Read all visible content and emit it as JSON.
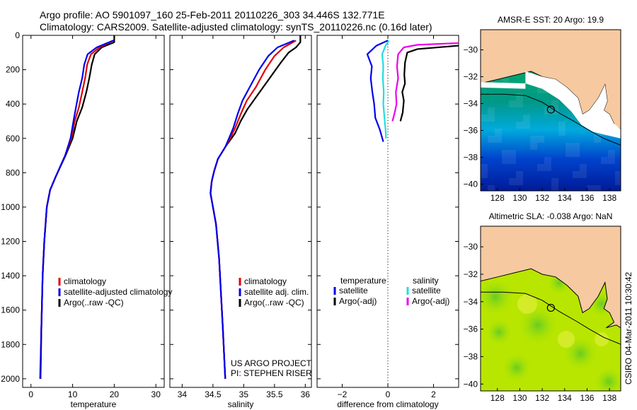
{
  "header": {
    "line1": "Argo profile: AO 5901097_160 25-Feb-2011 20110226_303 34.446S 132.771E",
    "line2": "Climatology: CARS2009. Satellite-adjusted climatology: synTS_20110226.nc (0.16d later)"
  },
  "side_label": "CSIRO 04-Mar-2011 10:30:42",
  "colors": {
    "climatology": "#e00000",
    "satellite": "#0000ee",
    "argo": "#000000",
    "satellite_salinity": "#22dddd",
    "argo_salinity_adj": "#ee00ee",
    "land": "#f6c9a0",
    "sst_field": "#00aa77",
    "sla_field": "#b8e600"
  },
  "chart_data": [
    {
      "type": "line",
      "name": "temperature-profile",
      "xlabel": "temperature",
      "xlim": [
        -2,
        32
      ],
      "xticks": [
        0,
        10,
        20,
        30
      ],
      "ylim": [
        2050,
        0
      ],
      "yticks": [
        0,
        200,
        400,
        600,
        800,
        1000,
        1200,
        1400,
        1600,
        1800,
        2000
      ],
      "legend": [
        "climatology",
        "satellite-adjusted climatology",
        "Argo(..raw -QC)"
      ],
      "series": [
        {
          "name": "Argo(..raw -QC)",
          "color": "#000000",
          "points": [
            [
              20,
              0
            ],
            [
              20,
              40
            ],
            [
              17,
              70
            ],
            [
              15.3,
              110
            ],
            [
              14.6,
              170
            ],
            [
              14,
              250
            ],
            [
              13.3,
              330
            ],
            [
              12.3,
              420
            ],
            [
              11,
              500
            ],
            [
              10,
              600
            ],
            [
              8.3,
              700
            ],
            [
              6,
              820
            ],
            [
              4.6,
              900
            ],
            [
              3.8,
              1000
            ],
            [
              3.2,
              1200
            ],
            [
              2.8,
              1400
            ],
            [
              2.5,
              1700
            ],
            [
              2.2,
              2000
            ]
          ]
        },
        {
          "name": "climatology",
          "color": "#e00000",
          "points": [
            [
              19.8,
              30
            ],
            [
              16.5,
              70
            ],
            [
              14.4,
              110
            ],
            [
              13.5,
              170
            ],
            [
              13,
              250
            ],
            [
              12.3,
              330
            ],
            [
              11.5,
              420
            ],
            [
              10.5,
              500
            ],
            [
              9.7,
              600
            ],
            [
              8.2,
              700
            ],
            [
              6,
              820
            ],
            [
              4.6,
              900
            ],
            [
              3.8,
              1000
            ],
            [
              3.2,
              1200
            ],
            [
              2.8,
              1400
            ],
            [
              2.5,
              1700
            ],
            [
              2.3,
              2000
            ]
          ]
        },
        {
          "name": "satellite-adjusted climatology",
          "color": "#0000ee",
          "points": [
            [
              19.8,
              30
            ],
            [
              15.8,
              70
            ],
            [
              13.6,
              110
            ],
            [
              12.8,
              170
            ],
            [
              12.3,
              250
            ],
            [
              11.5,
              330
            ],
            [
              10.8,
              420
            ],
            [
              10.2,
              500
            ],
            [
              9.5,
              600
            ],
            [
              8.2,
              700
            ],
            [
              6,
              820
            ],
            [
              4.6,
              900
            ],
            [
              3.8,
              1000
            ],
            [
              3.2,
              1200
            ],
            [
              2.8,
              1400
            ],
            [
              2.5,
              1700
            ],
            [
              2.3,
              2000
            ]
          ]
        }
      ]
    },
    {
      "type": "line",
      "name": "salinity-profile",
      "xlabel": "salinity",
      "xlim": [
        33.8,
        36.1
      ],
      "xticks": [
        34,
        34.5,
        35,
        35.5,
        36
      ],
      "xtick_labels": [
        "34",
        "34.5",
        "35",
        "35.5",
        "36"
      ],
      "ylim": [
        2050,
        0
      ],
      "legend": [
        "climatology",
        "satellite adj. clim.",
        "Argo(..raw -QC)"
      ],
      "annotation": [
        "US ARGO PROJECT",
        "PI: STEPHEN RISER"
      ],
      "series": [
        {
          "name": "Argo(..raw -QC)",
          "color": "#000000",
          "points": [
            [
              35.92,
              0
            ],
            [
              35.92,
              40
            ],
            [
              35.85,
              70
            ],
            [
              35.73,
              100
            ],
            [
              35.6,
              160
            ],
            [
              35.42,
              250
            ],
            [
              35.22,
              350
            ],
            [
              35.06,
              430
            ],
            [
              34.95,
              500
            ],
            [
              34.86,
              570
            ],
            [
              34.72,
              640
            ],
            [
              34.58,
              720
            ],
            [
              34.52,
              790
            ],
            [
              34.48,
              850
            ],
            [
              34.46,
              920
            ],
            [
              34.5,
              1000
            ],
            [
              34.55,
              1100
            ],
            [
              34.6,
              1300
            ],
            [
              34.63,
              1500
            ],
            [
              34.66,
              1700
            ],
            [
              34.68,
              1850
            ],
            [
              34.7,
              2000
            ]
          ]
        },
        {
          "name": "climatology",
          "color": "#e00000",
          "points": [
            [
              35.85,
              30
            ],
            [
              35.65,
              70
            ],
            [
              35.5,
              120
            ],
            [
              35.35,
              200
            ],
            [
              35.2,
              300
            ],
            [
              35.05,
              380
            ],
            [
              34.95,
              460
            ],
            [
              34.86,
              540
            ],
            [
              34.78,
              600
            ],
            [
              34.7,
              650
            ],
            [
              34.58,
              720
            ],
            [
              34.52,
              790
            ],
            [
              34.48,
              850
            ],
            [
              34.46,
              920
            ],
            [
              34.5,
              1000
            ],
            [
              34.55,
              1100
            ],
            [
              34.6,
              1300
            ],
            [
              34.63,
              1500
            ],
            [
              34.66,
              1700
            ],
            [
              34.68,
              1850
            ],
            [
              34.7,
              2000
            ]
          ]
        },
        {
          "name": "satellite adj. clim.",
          "color": "#0000ee",
          "points": [
            [
              35.82,
              30
            ],
            [
              35.55,
              70
            ],
            [
              35.4,
              120
            ],
            [
              35.25,
              200
            ],
            [
              35.1,
              300
            ],
            [
              34.98,
              380
            ],
            [
              34.9,
              460
            ],
            [
              34.83,
              540
            ],
            [
              34.76,
              600
            ],
            [
              34.7,
              650
            ],
            [
              34.58,
              720
            ],
            [
              34.52,
              790
            ],
            [
              34.48,
              850
            ],
            [
              34.46,
              920
            ],
            [
              34.5,
              1000
            ],
            [
              34.55,
              1100
            ],
            [
              34.6,
              1300
            ],
            [
              34.63,
              1500
            ],
            [
              34.66,
              1700
            ],
            [
              34.68,
              1850
            ],
            [
              34.7,
              2000
            ]
          ]
        }
      ]
    },
    {
      "type": "line",
      "name": "difference-profile",
      "xlabel": "difference from climatology",
      "xlim": [
        -3.1,
        3.1
      ],
      "xticks": [
        -2,
        0,
        2
      ],
      "ylim": [
        2050,
        0
      ],
      "legend_headers": [
        "temperature",
        "salinity"
      ],
      "legend": [
        "satellite",
        "Argo(-adj)",
        "satellite",
        "Argo(-adj)"
      ],
      "series": [
        {
          "name": "temperature satellite",
          "color": "#0000ee",
          "points": [
            [
              0,
              30
            ],
            [
              -0.5,
              60
            ],
            [
              -0.9,
              110
            ],
            [
              -0.7,
              180
            ],
            [
              -0.75,
              250
            ],
            [
              -0.68,
              330
            ],
            [
              -0.6,
              400
            ],
            [
              -0.55,
              480
            ],
            [
              -0.35,
              550
            ],
            [
              -0.2,
              620
            ]
          ]
        },
        {
          "name": "temperature Argo(-adj)",
          "color": "#000000",
          "points": [
            [
              3.1,
              60
            ],
            [
              1.3,
              80
            ],
            [
              0.85,
              100
            ],
            [
              0.75,
              160
            ],
            [
              0.72,
              230
            ],
            [
              0.75,
              280
            ],
            [
              0.63,
              330
            ],
            [
              0.7,
              380
            ],
            [
              0.65,
              450
            ],
            [
              0.55,
              500
            ]
          ]
        },
        {
          "name": "salinity satellite",
          "color": "#22dddd",
          "points": [
            [
              0.05,
              30
            ],
            [
              -0.1,
              60
            ],
            [
              -0.25,
              110
            ],
            [
              -0.2,
              180
            ],
            [
              -0.22,
              250
            ],
            [
              -0.18,
              330
            ],
            [
              -0.2,
              400
            ],
            [
              -0.15,
              480
            ],
            [
              -0.1,
              550
            ],
            [
              -0.08,
              600
            ]
          ]
        },
        {
          "name": "salinity Argo(-adj)",
          "color": "#ee00ee",
          "points": [
            [
              3.1,
              45
            ],
            [
              1.3,
              55
            ],
            [
              0.7,
              70
            ],
            [
              0.45,
              110
            ],
            [
              0.4,
              180
            ],
            [
              0.45,
              250
            ],
            [
              0.35,
              330
            ],
            [
              0.38,
              400
            ],
            [
              0.3,
              450
            ],
            [
              0.2,
              500
            ]
          ]
        }
      ]
    },
    {
      "type": "heatmap",
      "name": "sst-map",
      "title": "AMSR-E SST: 20 Argo: 19.9",
      "xlim": [
        126.5,
        139
      ],
      "ylim": [
        -40.5,
        -28.5
      ],
      "xticks": [
        128,
        130,
        132,
        134,
        136,
        138
      ],
      "yticks": [
        -30,
        -32,
        -34,
        -36,
        -38,
        -40
      ],
      "marker": [
        132.771,
        -34.446
      ]
    },
    {
      "type": "heatmap",
      "name": "sla-map",
      "title": "Altimetric SLA: -0.038 Argo: NaN",
      "xlim": [
        126.5,
        139
      ],
      "ylim": [
        -40.5,
        -28.5
      ],
      "xticks": [
        128,
        130,
        132,
        134,
        136,
        138
      ],
      "yticks": [
        -30,
        -32,
        -34,
        -36,
        -38,
        -40
      ],
      "marker": [
        132.771,
        -34.446
      ]
    }
  ]
}
